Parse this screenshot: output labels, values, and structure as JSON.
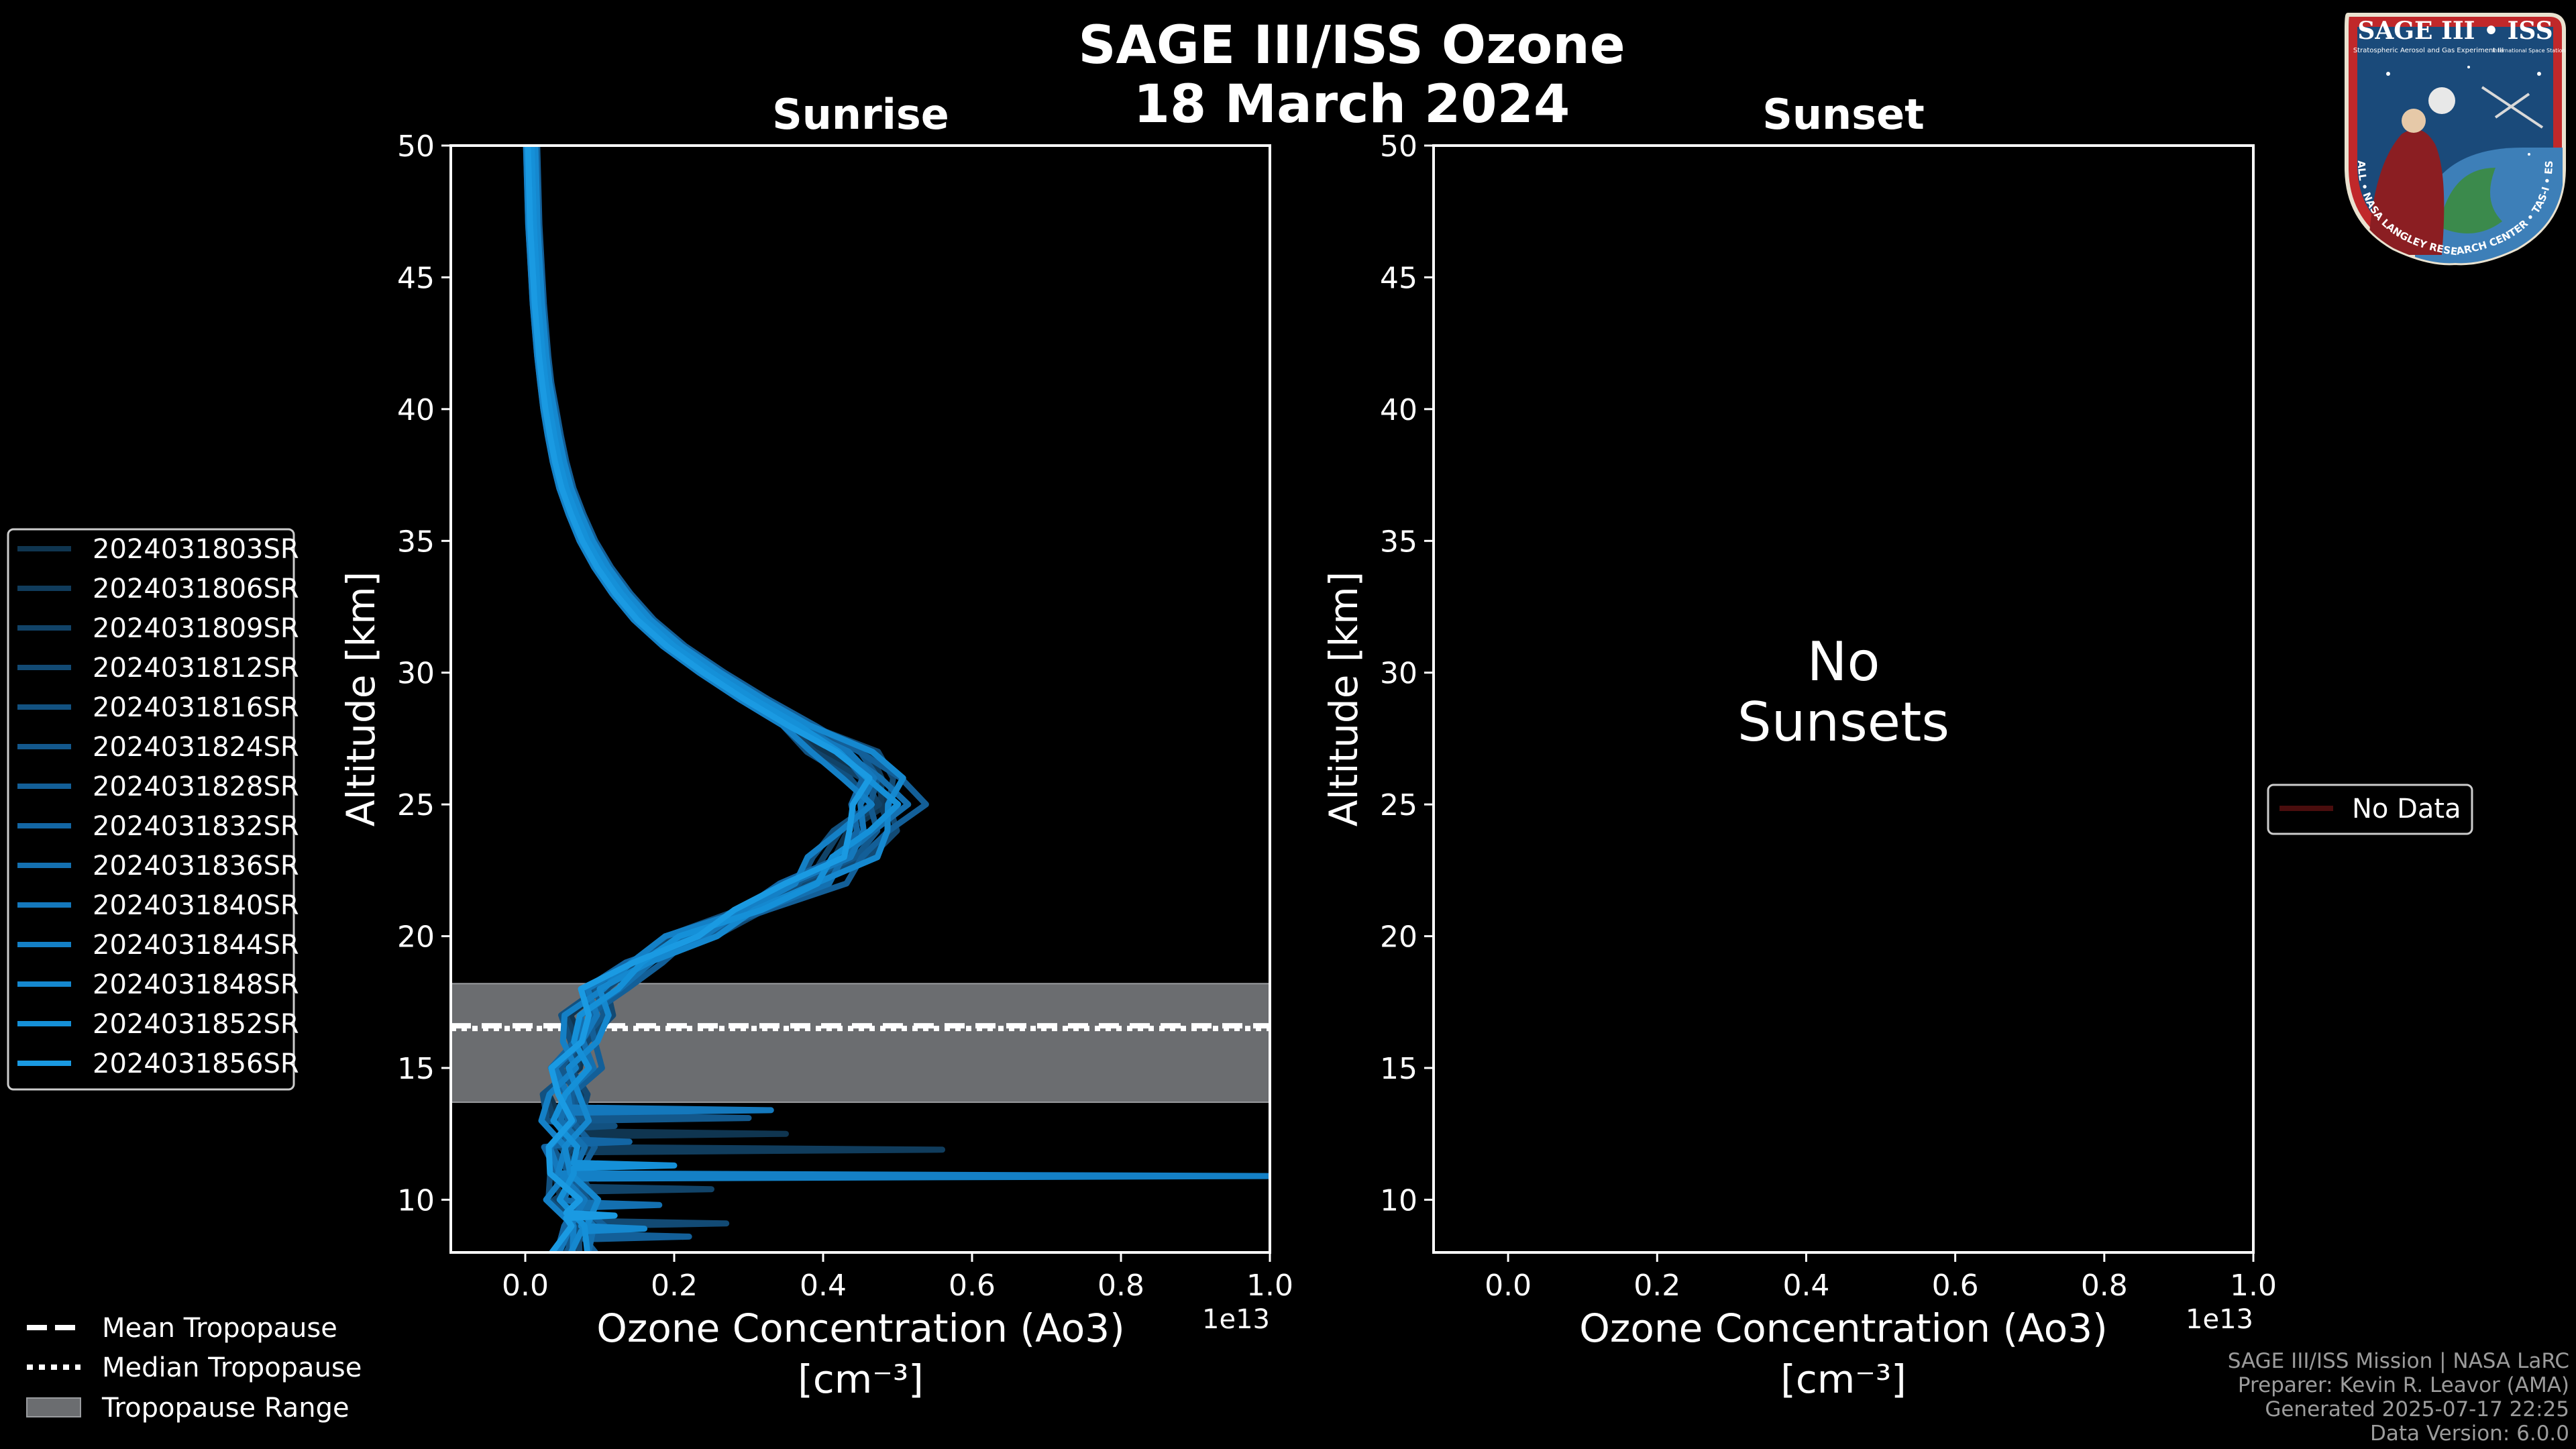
{
  "figure": {
    "title_line1": "SAGE III/ISS Ozone",
    "title_line2": "18 March 2024",
    "credits": [
      "SAGE III/ISS Mission | NASA LaRC",
      "Preparer: Kevin R. Leavor (AMA)",
      "Generated 2025-07-17 22:25",
      "Data Version: 6.0.0"
    ],
    "logo": {
      "title": "SAGE III • ISS",
      "subtitle": "Stratospheric Aerosol and Gas Experiment III",
      "side_text": "International Space Station",
      "ring_text": "BALL • NASA LANGLEY RESEARCH CENTER • TAS-I • ESA"
    },
    "colors": {
      "background": "#000000",
      "foreground": "#ffffff",
      "tropopause_range": "#6b6d70",
      "no_data_line": "#4a0d0d",
      "series": [
        "#0f3550",
        "#103c5c",
        "#114368",
        "#124a74",
        "#125180",
        "#13588c",
        "#135f98",
        "#1366a4",
        "#1470b0",
        "#1478bc",
        "#1480c6",
        "#1588cf",
        "#1590d8",
        "#1a9ae2"
      ]
    },
    "ticks_y": [
      "10",
      "15",
      "20",
      "25",
      "30",
      "35",
      "40",
      "45",
      "50"
    ],
    "ticks_x": [
      "0.0",
      "0.2",
      "0.4",
      "0.6",
      "0.8",
      "1.0"
    ]
  },
  "legend_left": {
    "entries": [
      "2024031803SR",
      "2024031806SR",
      "2024031809SR",
      "2024031812SR",
      "2024031816SR",
      "2024031824SR",
      "2024031828SR",
      "2024031832SR",
      "2024031836SR",
      "2024031840SR",
      "2024031844SR",
      "2024031848SR",
      "2024031852SR",
      "2024031856SR"
    ]
  },
  "legend_tropopause": {
    "mean": "Mean Tropopause",
    "median": "Median Tropopause",
    "range": "Tropopause Range"
  },
  "legend_right": {
    "entry": "No Data"
  },
  "chart_data": [
    {
      "type": "line",
      "panel": "left",
      "title": "Sunrise",
      "xlabel_line1": "Ozone Concentration (Ao3)",
      "xlabel_line2": "[cm⁻³]",
      "ylabel": "Altitude [km]",
      "x_offset_label": "1e13",
      "xlim": [
        -0.1,
        1.0
      ],
      "ylim": [
        8,
        50
      ],
      "x_scale_factor": 10000000000000.0,
      "tropopause": {
        "mean": 16.6,
        "median": 16.5,
        "range": [
          13.7,
          18.2
        ]
      },
      "profile_altitudes": [
        8,
        9,
        10,
        11,
        12,
        13,
        14,
        15,
        16,
        17,
        18,
        19,
        20,
        21,
        22,
        23,
        24,
        25,
        26,
        27,
        28,
        29,
        30,
        31,
        32,
        33,
        34,
        35,
        36,
        37,
        38,
        39,
        40,
        41,
        42,
        43,
        44,
        45,
        46,
        47,
        48,
        49,
        50
      ],
      "base_profile": [
        0.06,
        0.07,
        0.06,
        0.05,
        0.05,
        0.05,
        0.05,
        0.06,
        0.07,
        0.08,
        0.1,
        0.15,
        0.22,
        0.3,
        0.37,
        0.42,
        0.45,
        0.47,
        0.46,
        0.42,
        0.36,
        0.3,
        0.245,
        0.195,
        0.155,
        0.125,
        0.1,
        0.08,
        0.065,
        0.052,
        0.043,
        0.036,
        0.03,
        0.025,
        0.021,
        0.018,
        0.015,
        0.013,
        0.011,
        0.009,
        0.008,
        0.007,
        0.006
      ],
      "series": [
        {
          "name": "2024031803SR",
          "shift": 0.0,
          "spikes": [
            [
              12.5,
              0.35
            ]
          ]
        },
        {
          "name": "2024031806SR",
          "shift": 0.02,
          "spikes": [
            [
              11.9,
              0.56
            ]
          ]
        },
        {
          "name": "2024031809SR",
          "shift": -0.01,
          "spikes": [
            [
              10.4,
              0.25
            ]
          ]
        },
        {
          "name": "2024031812SR",
          "shift": 0.03,
          "spikes": [
            [
              9.1,
              0.27
            ]
          ]
        },
        {
          "name": "2024031816SR",
          "shift": -0.02,
          "spikes": [
            [
              12.8,
              0.12
            ]
          ]
        },
        {
          "name": "2024031824SR",
          "shift": 0.01,
          "spikes": [
            [
              13.1,
              0.3
            ]
          ]
        },
        {
          "name": "2024031828SR",
          "shift": 0.04,
          "spikes": [
            [
              8.6,
              0.22
            ]
          ]
        },
        {
          "name": "2024031832SR",
          "shift": -0.01,
          "spikes": [
            [
              12.2,
              0.14
            ]
          ]
        },
        {
          "name": "2024031836SR",
          "shift": 0.02,
          "spikes": [
            [
              9.8,
              0.18
            ]
          ]
        },
        {
          "name": "2024031840SR",
          "shift": 0.0,
          "spikes": [
            [
              13.4,
              0.33
            ]
          ]
        },
        {
          "name": "2024031844SR",
          "shift": -0.02,
          "spikes": [
            [
              10.9,
              1.0
            ]
          ]
        },
        {
          "name": "2024031848SR",
          "shift": 0.03,
          "spikes": [
            [
              8.9,
              0.16
            ]
          ]
        },
        {
          "name": "2024031852SR",
          "shift": 0.01,
          "spikes": [
            [
              11.3,
              0.2
            ]
          ]
        },
        {
          "name": "2024031856SR",
          "shift": -0.01,
          "spikes": [
            [
              9.4,
              0.12
            ]
          ]
        }
      ]
    },
    {
      "type": "line",
      "panel": "right",
      "title": "Sunset",
      "xlabel_line1": "Ozone Concentration (Ao3)",
      "xlabel_line2": "[cm⁻³]",
      "ylabel": "Altitude [km]",
      "x_offset_label": "1e13",
      "xlim": [
        -0.1,
        1.0
      ],
      "ylim": [
        8,
        50
      ],
      "annotation_line1": "No",
      "annotation_line2": "Sunsets",
      "series": []
    }
  ]
}
